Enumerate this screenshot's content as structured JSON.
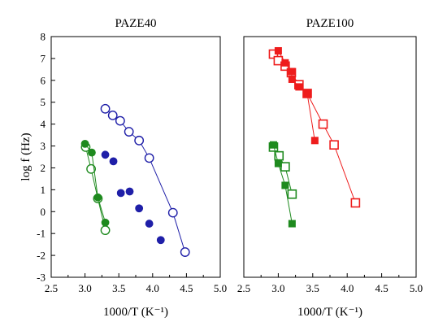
{
  "chart_data": [
    {
      "type": "scatter",
      "title": "PAZE40",
      "xlabel": "1000/T (K⁻¹)",
      "ylabel": "log f (Hz)",
      "xlim": [
        2.5,
        5.0
      ],
      "ylim": [
        -3,
        8
      ],
      "xticks": [
        "2.5",
        "3.0",
        "3.5",
        "4.0",
        "4.5",
        "5.0"
      ],
      "yticks": [
        "-3",
        "-2",
        "-1",
        "0",
        "1",
        "2",
        "3",
        "4",
        "5",
        "6",
        "7",
        "8"
      ],
      "grid": false,
      "legend": "none",
      "series": [
        {
          "color": "#1f1fa8",
          "marker": "circle-open",
          "fit_line": true,
          "x": [
            3.3,
            3.41,
            3.52,
            3.65,
            3.8,
            3.95,
            4.3,
            4.48
          ],
          "y": [
            4.7,
            4.4,
            4.15,
            3.65,
            3.25,
            2.45,
            -0.05,
            -1.85
          ]
        },
        {
          "color": "#1f1fa8",
          "marker": "circle-filled",
          "fit_line": false,
          "x": [
            3.3,
            3.42,
            3.53,
            3.66,
            3.8,
            3.95,
            4.12
          ],
          "y": [
            2.6,
            2.3,
            0.85,
            0.92,
            0.15,
            -0.55,
            -1.3
          ]
        },
        {
          "color": "#1e8a1e",
          "marker": "circle-open",
          "fit_line": true,
          "x": [
            3.01,
            3.09,
            3.19,
            3.3
          ],
          "y": [
            2.95,
            1.95,
            0.6,
            -0.85
          ]
        },
        {
          "color": "#1e8a1e",
          "marker": "circle-filled",
          "fit_line": true,
          "x": [
            3.0,
            3.1,
            3.19,
            3.3
          ],
          "y": [
            3.1,
            2.7,
            0.65,
            -0.5
          ]
        }
      ]
    },
    {
      "type": "scatter",
      "title": "PAZE100",
      "xlabel": "1000/T (K⁻¹)",
      "ylabel": "",
      "xlim": [
        2.5,
        5.0
      ],
      "ylim": [
        -3,
        8
      ],
      "xticks": [
        "2.5",
        "3.0",
        "3.5",
        "4.0",
        "4.5",
        "5.0"
      ],
      "yticks": [],
      "grid": false,
      "legend": "none",
      "series": [
        {
          "color": "#ee1c1c",
          "marker": "square-open",
          "fit_line": true,
          "x": [
            2.93,
            3.0,
            3.1,
            3.19,
            3.3,
            3.42,
            3.65,
            3.81,
            4.12
          ],
          "y": [
            7.2,
            6.9,
            6.65,
            6.35,
            5.8,
            5.4,
            4.0,
            3.05,
            0.4
          ]
        },
        {
          "color": "#ee1c1c",
          "marker": "square-filled",
          "fit_line": true,
          "x": [
            3.0,
            3.1,
            3.19,
            3.2,
            3.3,
            3.42,
            3.53
          ],
          "y": [
            7.35,
            6.8,
            6.4,
            6.05,
            5.7,
            5.4,
            3.25
          ]
        },
        {
          "color": "#1e8a1e",
          "marker": "square-open",
          "fit_line": true,
          "x": [
            2.93,
            3.01,
            3.1,
            3.2
          ],
          "y": [
            2.95,
            2.55,
            2.05,
            0.8
          ]
        },
        {
          "color": "#1e8a1e",
          "marker": "square-filled",
          "fit_line": true,
          "x": [
            2.93,
            3.0,
            3.1,
            3.2
          ],
          "y": [
            3.05,
            2.2,
            1.2,
            -0.55
          ]
        }
      ]
    }
  ]
}
